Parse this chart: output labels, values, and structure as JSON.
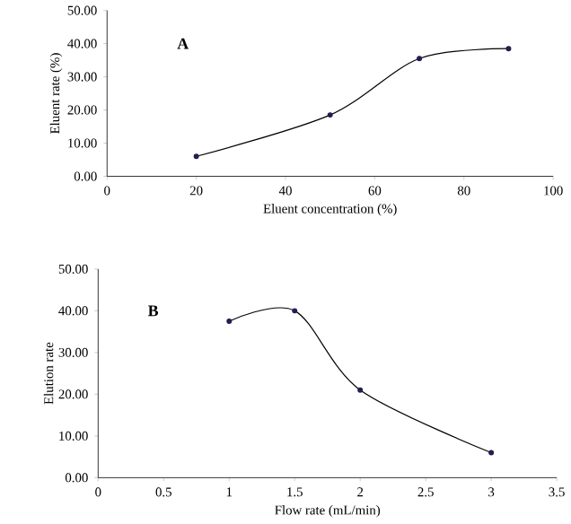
{
  "chart_data": [
    {
      "type": "line",
      "xlabel": "Eluent concentration (%)",
      "ylabel": "Eluent rate (%)",
      "annotations": [
        "A"
      ],
      "x": [
        20,
        50,
        70,
        90
      ],
      "values": [
        6,
        18.5,
        35.5,
        38.5
      ],
      "color": "#1f1f4f",
      "marker": "circle",
      "xlim": [
        0,
        100
      ],
      "ylim": [
        0,
        50
      ],
      "xticks": [
        0,
        20,
        40,
        60,
        80,
        100
      ],
      "yticks": [
        {
          "value": 0,
          "label": "0.00"
        },
        {
          "value": 10,
          "label": "10.00"
        },
        {
          "value": 20,
          "label": "20.00"
        },
        {
          "value": 30,
          "label": "30.00"
        },
        {
          "value": 40,
          "label": "40.00"
        },
        {
          "value": 50,
          "label": "50.00"
        }
      ]
    },
    {
      "type": "line",
      "xlabel": "Flow rate (mL/min)",
      "ylabel": "Elution rate",
      "annotations": [
        "B"
      ],
      "x": [
        1,
        1.5,
        2,
        3
      ],
      "values": [
        37.5,
        40,
        21,
        6
      ],
      "color": "#1f1f4f",
      "marker": "circle",
      "xlim": [
        0,
        3.5
      ],
      "ylim": [
        0,
        50
      ],
      "xticks": [
        0,
        0.5,
        1,
        1.5,
        2,
        2.5,
        3,
        3.5
      ],
      "yticks": [
        {
          "value": 0,
          "label": "0.00"
        },
        {
          "value": 10,
          "label": "10.00"
        },
        {
          "value": 20,
          "label": "20.00"
        },
        {
          "value": 30,
          "label": "30.00"
        },
        {
          "value": 40,
          "label": "40.00"
        },
        {
          "value": 50,
          "label": "50.00"
        }
      ]
    }
  ]
}
